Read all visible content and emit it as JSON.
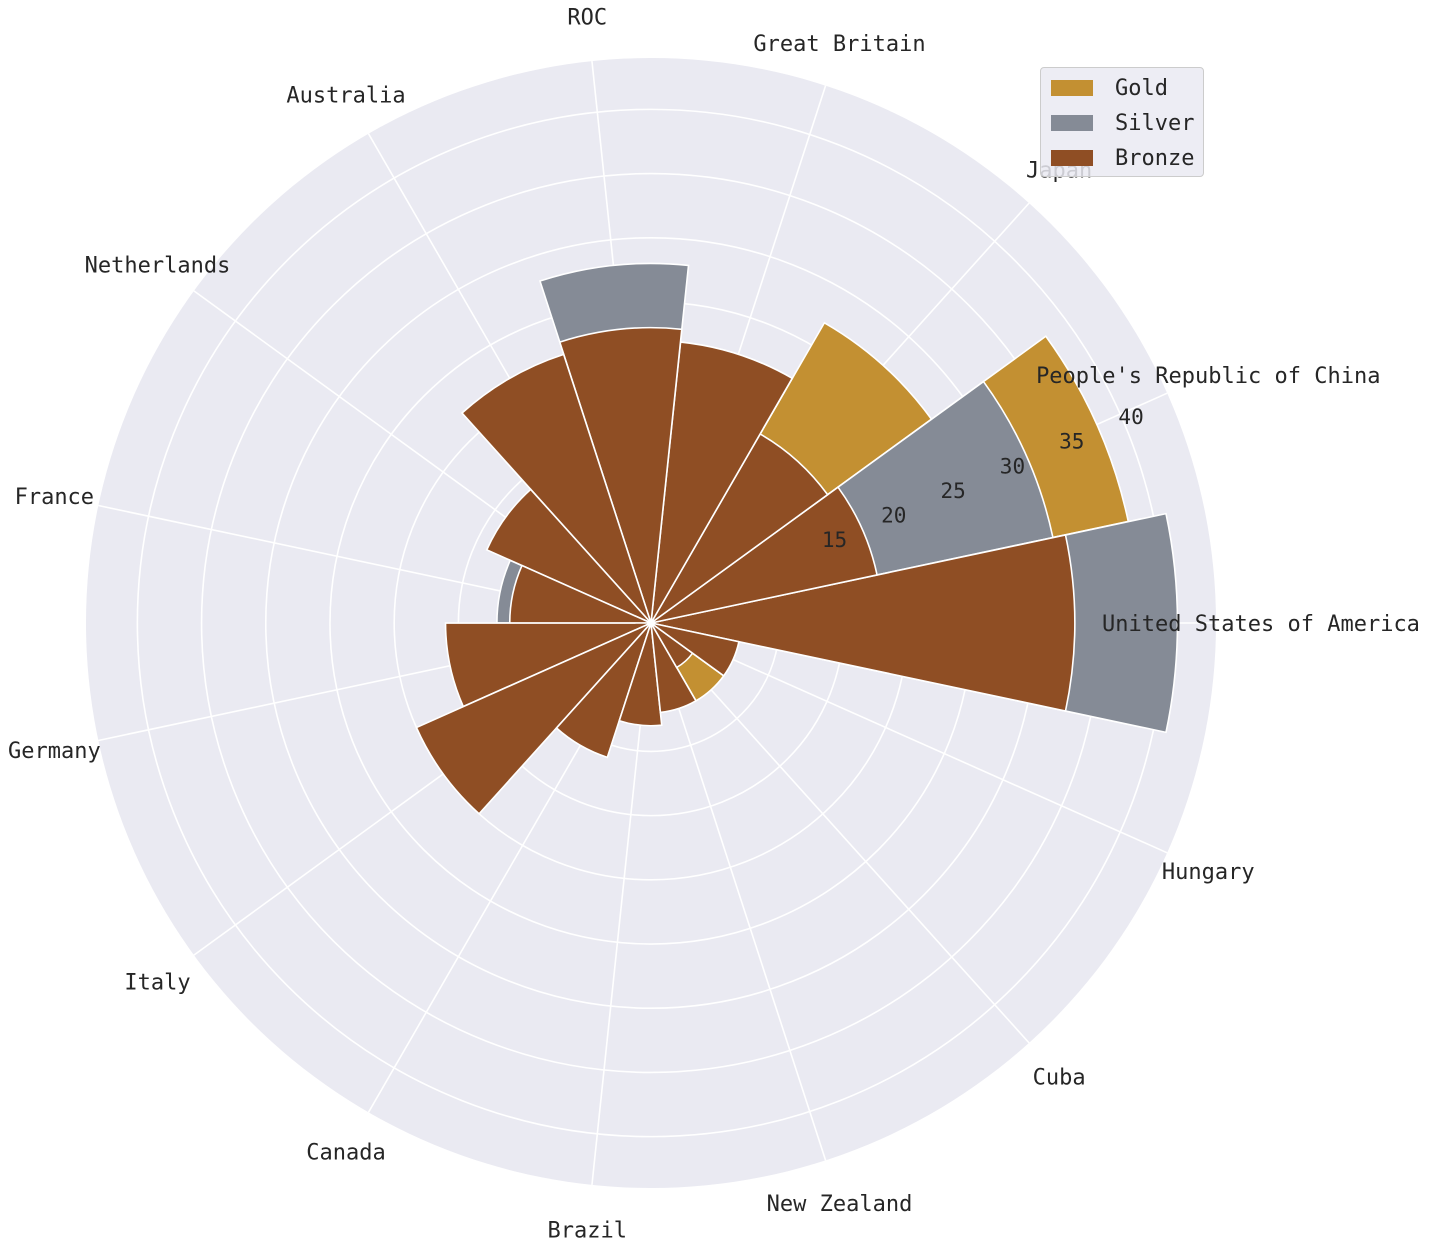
{
  "chart_data": {
    "type": "polar-bar",
    "categories": [
      "United States of America",
      "People's Republic of China",
      "Japan",
      "Great Britain",
      "ROC",
      "Australia",
      "Netherlands",
      "France",
      "Germany",
      "Italy",
      "Canada",
      "Brazil",
      "New Zealand",
      "Cuba",
      "Hungary"
    ],
    "series": [
      {
        "name": "Bronze",
        "values": [
          33,
          18,
          17,
          22,
          23,
          22,
          14,
          11,
          16,
          20,
          11,
          8,
          7,
          4,
          7
        ]
      },
      {
        "name": "Silver",
        "values": [
          41,
          32,
          14,
          21,
          28,
          7,
          12,
          12,
          11,
          10,
          6,
          6,
          6,
          3,
          7
        ]
      },
      {
        "name": "Gold",
        "values": [
          39,
          38,
          27,
          22,
          20,
          17,
          10,
          10,
          10,
          10,
          7,
          7,
          7,
          7,
          6
        ]
      }
    ],
    "radial_ticks": [
      15,
      20,
      25,
      30,
      35,
      40
    ],
    "rlim": [
      0,
      44
    ],
    "colors": {
      "Gold": "#c39032",
      "Silver": "#858b96",
      "Bronze": "#8f4e24"
    },
    "grid": true,
    "legend": {
      "placement": "top-right",
      "entries": [
        "Gold",
        "Silver",
        "Bronze"
      ]
    }
  }
}
